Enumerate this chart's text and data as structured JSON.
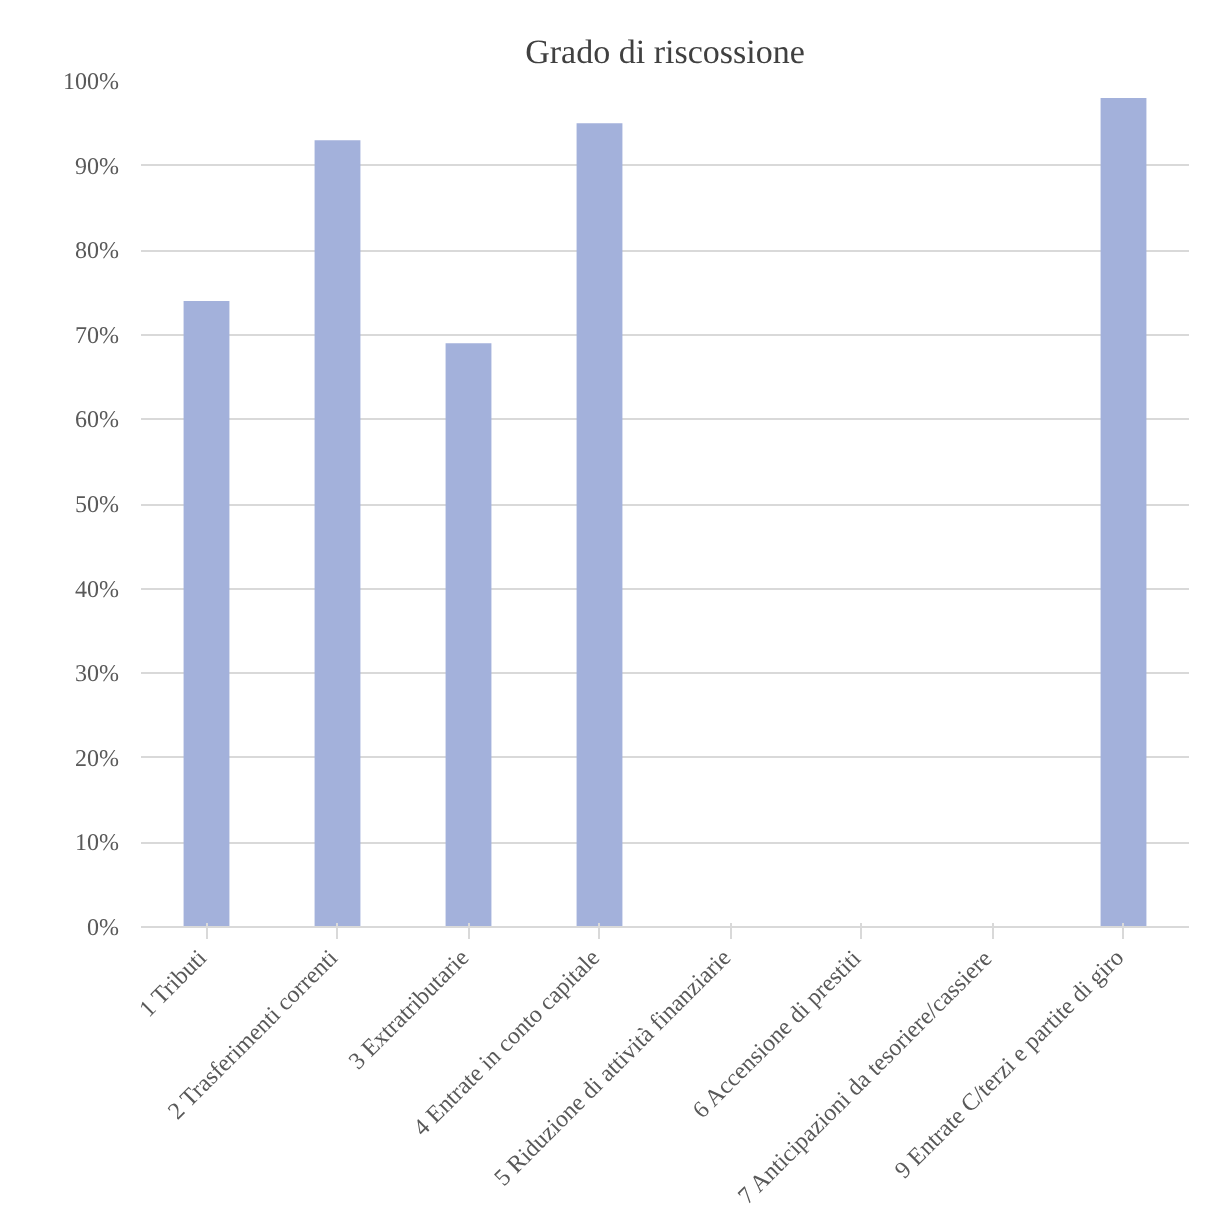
{
  "chart_data": {
    "type": "bar",
    "title": "Grado di riscossione",
    "categories": [
      "1  Tributi",
      "2  Trasferimenti correnti",
      "3  Extratributarie",
      "4  Entrate in conto capitale",
      "5  Riduzione di attività finanziarie",
      "6  Accensione di prestiti",
      "7  Anticipazioni da tesoriere/cassiere",
      "9  Entrate C/terzi e partite di giro"
    ],
    "values": [
      74,
      93,
      69,
      95,
      0,
      0,
      0,
      98
    ],
    "color": "#a3b1db",
    "ylim": [
      0,
      100
    ],
    "yticks": [
      {
        "value": 0,
        "label": "0%"
      },
      {
        "value": 10,
        "label": "10%"
      },
      {
        "value": 20,
        "label": "20%"
      },
      {
        "value": 30,
        "label": "30%"
      },
      {
        "value": 40,
        "label": "40%"
      },
      {
        "value": 50,
        "label": "50%"
      },
      {
        "value": 60,
        "label": "60%"
      },
      {
        "value": 70,
        "label": "70%"
      },
      {
        "value": 80,
        "label": "80%"
      },
      {
        "value": 90,
        "label": "90%"
      },
      {
        "value": 100,
        "label": "100%"
      }
    ],
    "grid": "y"
  }
}
